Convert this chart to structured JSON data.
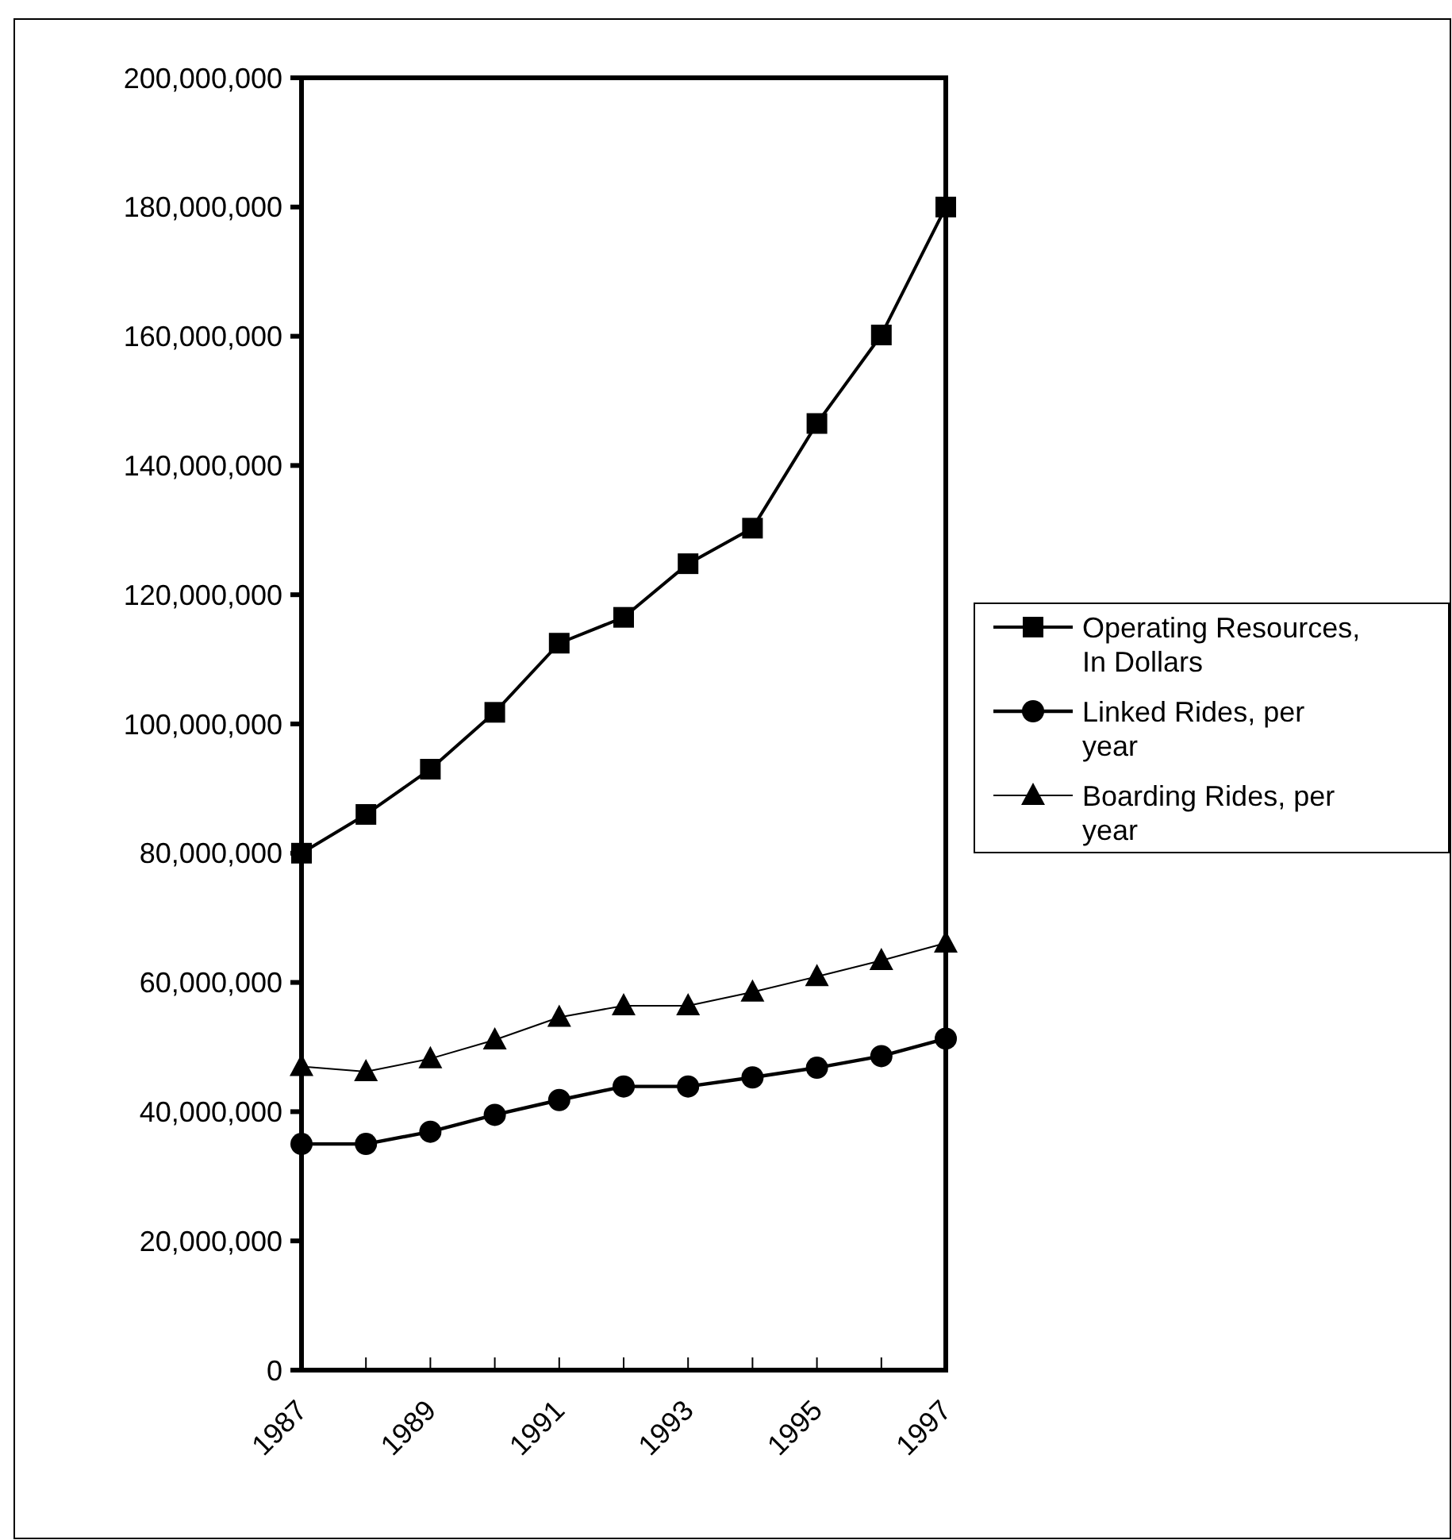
{
  "chart_data": {
    "type": "line",
    "x": [
      1987,
      1988,
      1989,
      1990,
      1991,
      1992,
      1993,
      1994,
      1995,
      1996,
      1997
    ],
    "series": [
      {
        "name": "Operating Resources, In Dollars",
        "color": "#000000",
        "marker": "square",
        "values": [
          80000000,
          86000000,
          93000000,
          101800000,
          112500000,
          116500000,
          124800000,
          130300000,
          146500000,
          160200000,
          180000000
        ]
      },
      {
        "name": "Linked Rides, per year",
        "color": "#000000",
        "marker": "circle",
        "values": [
          35000000,
          35000000,
          36900000,
          39500000,
          41800000,
          43900000,
          43900000,
          45300000,
          46800000,
          48600000,
          51300000
        ]
      },
      {
        "name": "Boarding Rides, per year",
        "color": "#000000",
        "marker": "triangle",
        "values": [
          47000000,
          46200000,
          48200000,
          51100000,
          54600000,
          56400000,
          56400000,
          58500000,
          60900000,
          63400000,
          66100000
        ]
      }
    ],
    "xlim": [
      1987,
      1997
    ],
    "xticks": [
      1987,
      {
        "value": 1988,
        "label": null
      },
      1989,
      {
        "value": 1990,
        "label": null
      },
      1991,
      {
        "value": 1992,
        "label": null
      },
      1993,
      {
        "value": 1994,
        "label": null
      },
      1995,
      {
        "value": 1996,
        "label": null
      },
      1997
    ],
    "ylim": [
      0,
      200000000
    ],
    "yticks": [
      {
        "value": 0,
        "label": "0"
      },
      {
        "value": 20000000,
        "label": "20,000,000"
      },
      {
        "value": 40000000,
        "label": "40,000,000"
      },
      {
        "value": 60000000,
        "label": "60,000,000"
      },
      {
        "value": 80000000,
        "label": "80,000,000"
      },
      {
        "value": 100000000,
        "label": "100,000,000"
      },
      {
        "value": 120000000,
        "label": "120,000,000"
      },
      {
        "value": 140000000,
        "label": "140,000,000"
      },
      {
        "value": 160000000,
        "label": "160,000,000"
      },
      {
        "value": 180000000,
        "label": "180,000,000"
      },
      {
        "value": 200000000,
        "label": "200,000,000"
      }
    ],
    "grid": false,
    "legend": "right",
    "line_style": "solid"
  }
}
